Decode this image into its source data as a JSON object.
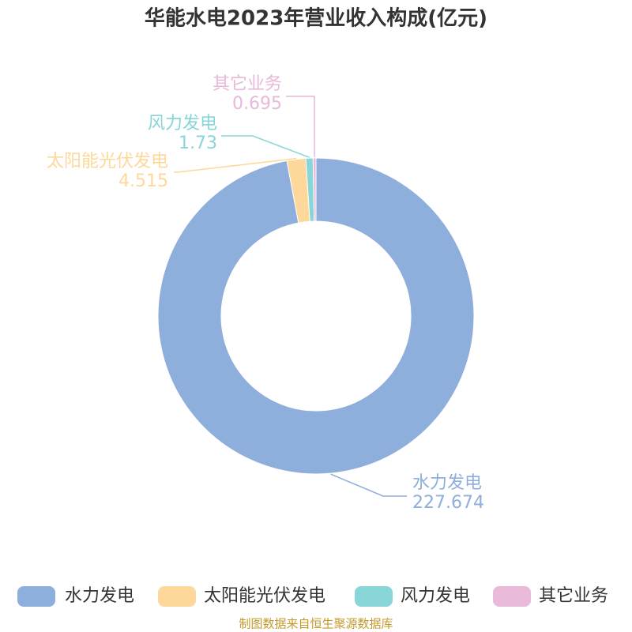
{
  "chart_data": {
    "type": "pie",
    "title": "华能水电2023年营业收入构成(亿元)",
    "categories": [
      "水力发电",
      "太阳能光伏发电",
      "风力发电",
      "其它业务"
    ],
    "values": [
      227.674,
      4.515,
      1.73,
      0.695
    ],
    "colors": [
      "#8eaedb",
      "#fdd89a",
      "#88d6d8",
      "#e8b9d9"
    ],
    "source": "制图数据来自恒生聚源数据库"
  }
}
